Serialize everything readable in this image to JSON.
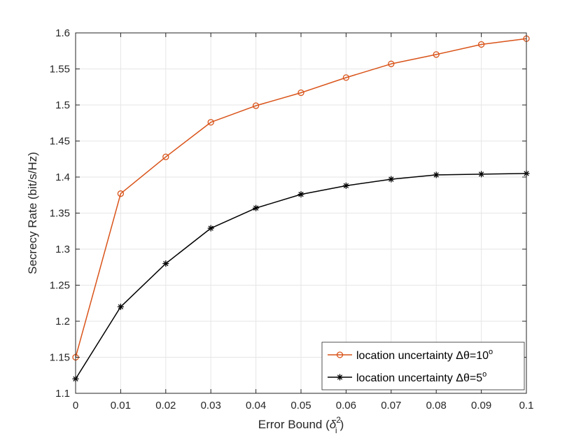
{
  "chart_data": {
    "type": "line",
    "title": "",
    "xlabel": {
      "main": "Error Bound (",
      "symbol": "δ",
      "superscript": "2",
      "subscript": "i",
      "close": ")"
    },
    "ylabel": "Secrecy Rate (bit/s/Hz)",
    "xlim": [
      0,
      0.1
    ],
    "ylim": [
      1.1,
      1.6
    ],
    "x_ticks": [
      0,
      0.01,
      0.02,
      0.03,
      0.04,
      0.05,
      0.06,
      0.07,
      0.08,
      0.09,
      0.1
    ],
    "x_tick_labels": [
      "0",
      "0.01",
      "0.02",
      "0.03",
      "0.04",
      "0.05",
      "0.06",
      "0.07",
      "0.08",
      "0.09",
      "0.1"
    ],
    "y_ticks": [
      1.1,
      1.15,
      1.2,
      1.25,
      1.3,
      1.35,
      1.4,
      1.45,
      1.5,
      1.55,
      1.6
    ],
    "y_tick_labels": [
      "1.1",
      "1.15",
      "1.2",
      "1.25",
      "1.3",
      "1.35",
      "1.4",
      "1.45",
      "1.5",
      "1.55",
      "1.6"
    ],
    "grid": true,
    "legend_position": "bottom-right",
    "x": [
      0,
      0.01,
      0.02,
      0.03,
      0.04,
      0.05,
      0.06,
      0.07,
      0.08,
      0.09,
      0.1
    ],
    "series": [
      {
        "name": "location uncertainty Δθ=10",
        "name_superscript": "o",
        "color": "#D95319",
        "marker": "circle",
        "values": [
          1.15,
          1.377,
          1.428,
          1.476,
          1.499,
          1.517,
          1.538,
          1.557,
          1.57,
          1.584,
          1.592
        ]
      },
      {
        "name": "location uncertainty Δθ=5",
        "name_superscript": "o",
        "color": "#000000",
        "marker": "asterisk",
        "values": [
          1.12,
          1.22,
          1.28,
          1.329,
          1.357,
          1.376,
          1.388,
          1.397,
          1.403,
          1.404,
          1.405
        ]
      }
    ],
    "colors": {
      "axis": "#262626",
      "grid": "#E6E6E6"
    }
  }
}
